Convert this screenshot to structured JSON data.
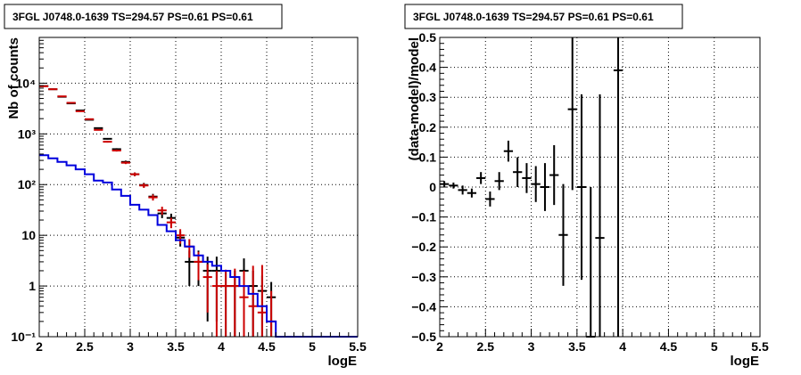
{
  "colors": {
    "data": "#000000",
    "model_total": "#cc0000",
    "model_source": "#0000dd",
    "grid": "#000000"
  },
  "chart_data": [
    {
      "type": "line",
      "title": "3FGL J0748.0-1639 TS=294.57 PS=0.61 PS=0.61",
      "xlabel": "logE",
      "ylabel": "Nb of counts",
      "ylog": true,
      "grid": true,
      "xlim": [
        2,
        5.5
      ],
      "ylim": [
        0.1,
        80000
      ],
      "xticks": [
        2,
        2.5,
        3,
        3.5,
        4,
        4.5,
        5,
        5.5
      ],
      "xtick_labels": [
        "2",
        "2.5",
        "3",
        "3.5",
        "4",
        "4.5",
        "5",
        "5.5"
      ],
      "yticks": [
        0.1,
        1,
        10,
        100,
        1000,
        10000
      ],
      "ytick_labels": [
        "10⁻¹",
        "1",
        "10",
        "10²",
        "10³",
        "10⁴"
      ],
      "bin_edges": [
        2.0,
        2.1,
        2.2,
        2.3,
        2.4,
        2.5,
        2.6,
        2.7,
        2.8,
        2.9,
        3.0,
        3.1,
        3.2,
        3.3,
        3.4,
        3.5,
        3.6,
        3.7,
        3.8,
        3.9,
        4.0,
        4.1,
        4.2,
        4.3,
        4.4,
        4.5,
        4.6,
        4.7,
        4.8,
        4.9,
        5.0,
        5.1,
        5.2,
        5.3,
        5.4,
        5.5
      ],
      "series": [
        {
          "kind": "points",
          "color": "#000000",
          "x": [
            2.05,
            2.15,
            2.25,
            2.35,
            2.45,
            2.55,
            2.65,
            2.75,
            2.85,
            2.95,
            3.05,
            3.15,
            3.25,
            3.35,
            3.45,
            3.55,
            3.65,
            3.75,
            3.85,
            3.95,
            4.05,
            4.15,
            4.25,
            4.35,
            4.45,
            4.55
          ],
          "y": [
            8800,
            7600,
            5400,
            4000,
            2900,
            1900,
            1300,
            800,
            500,
            280,
            160,
            98,
            58,
            27,
            22,
            9,
            3,
            3,
            2,
            2,
            1,
            1,
            2,
            1,
            0.8,
            0.6
          ],
          "err_low": [
            94,
            87,
            73,
            63,
            54,
            44,
            36,
            28,
            22,
            17,
            13,
            10,
            7.6,
            5.2,
            4.7,
            3,
            2,
            2,
            1.8,
            1.8,
            1,
            1,
            1.5,
            1,
            0.8,
            0.6
          ],
          "err_high": [
            94,
            87,
            73,
            63,
            54,
            44,
            36,
            28,
            22,
            17,
            13,
            10,
            7.6,
            5.2,
            4.7,
            3,
            2,
            2,
            1.8,
            1.8,
            1,
            1,
            1.5,
            1,
            0.8,
            0.6
          ]
        },
        {
          "kind": "points",
          "color": "#cc0000",
          "x": [
            2.05,
            2.15,
            2.25,
            2.35,
            2.45,
            2.55,
            2.65,
            2.75,
            2.85,
            2.95,
            3.05,
            3.15,
            3.25,
            3.35,
            3.45,
            3.55,
            3.65,
            3.75,
            3.85,
            3.95,
            4.05,
            4.15,
            4.25,
            4.35,
            4.45,
            4.55
          ],
          "y": [
            8700,
            7600,
            5500,
            4100,
            2800,
            1950,
            1200,
            700,
            470,
            270,
            160,
            96,
            56,
            31,
            18,
            10,
            6,
            3,
            1.5,
            1,
            1,
            1,
            0.6,
            0.4,
            0.3,
            0.2
          ],
          "err_low": [
            93,
            87,
            74,
            64,
            53,
            44,
            35,
            26,
            22,
            16,
            13,
            9.8,
            7.5,
            5.6,
            4.2,
            3.2,
            2.4,
            1.7,
            1.2,
            0.9,
            0.9,
            0.9,
            0.55,
            0.37,
            0.28,
            0.19
          ],
          "err_high": [
            93,
            87,
            74,
            64,
            53,
            44,
            35,
            26,
            22,
            16,
            13,
            9.8,
            7.5,
            5.6,
            4.2,
            3.2,
            2.4,
            1.7,
            1.2,
            1,
            1.1,
            1.2,
            1.4,
            2.1,
            2.3,
            0.6
          ]
        },
        {
          "kind": "step",
          "color": "#0000dd",
          "values": [
            380,
            330,
            280,
            240,
            200,
            160,
            120,
            110,
            80,
            60,
            40,
            32,
            25,
            16,
            12,
            8,
            6,
            4,
            3,
            2.5,
            2,
            1.5,
            1,
            0.7,
            0.4,
            0.2,
            0.1,
            0.1,
            0.1,
            0.1,
            0.1,
            0.1,
            0.1,
            0.1,
            0.1
          ]
        }
      ]
    },
    {
      "type": "scatter",
      "title": "3FGL J0748.0-1639 TS=294.57 PS=0.61 PS=0.61",
      "xlabel": "logE",
      "ylabel": "(data-model)/model",
      "grid": true,
      "xlim": [
        2,
        5.5
      ],
      "ylim": [
        -0.5,
        0.5
      ],
      "xticks": [
        2,
        2.5,
        3,
        3.5,
        4,
        4.5,
        5,
        5.5
      ],
      "xtick_labels": [
        "2",
        "2.5",
        "3",
        "3.5",
        "4",
        "4.5",
        "5",
        "5.5"
      ],
      "yticks": [
        -0.5,
        -0.4,
        -0.3,
        -0.2,
        -0.1,
        0,
        0.1,
        0.2,
        0.3,
        0.4,
        0.5
      ],
      "ytick_labels": [
        "−0.5",
        "−0.4",
        "−0.3",
        "−0.2",
        "−0.1",
        "0",
        "0.1",
        "0.2",
        "0.3",
        "0.4",
        "0.5"
      ],
      "series": [
        {
          "kind": "points",
          "color": "#000000",
          "x": [
            2.05,
            2.15,
            2.25,
            2.35,
            2.45,
            2.55,
            2.65,
            2.75,
            2.85,
            2.95,
            3.05,
            3.15,
            3.25,
            3.35,
            3.45,
            3.55,
            3.65,
            3.75,
            3.95
          ],
          "y": [
            0.01,
            0.005,
            -0.01,
            -0.02,
            0.03,
            -0.04,
            0.02,
            0.12,
            0.05,
            0.03,
            0.01,
            0.0,
            0.04,
            -0.16,
            0.26,
            0.0,
            -0.5,
            -0.17,
            0.39
          ],
          "err_low": [
            0.01,
            0.01,
            0.015,
            0.015,
            0.02,
            0.025,
            0.03,
            0.035,
            0.05,
            0.05,
            0.06,
            0.08,
            0.1,
            0.17,
            0.27,
            0.31,
            0.5,
            0.5,
            0.9
          ],
          "err_high": [
            0.01,
            0.01,
            0.015,
            0.015,
            0.02,
            0.025,
            0.03,
            0.035,
            0.05,
            0.05,
            0.06,
            0.08,
            0.1,
            0.17,
            0.27,
            0.31,
            0.5,
            0.48,
            0.9
          ]
        }
      ]
    }
  ]
}
